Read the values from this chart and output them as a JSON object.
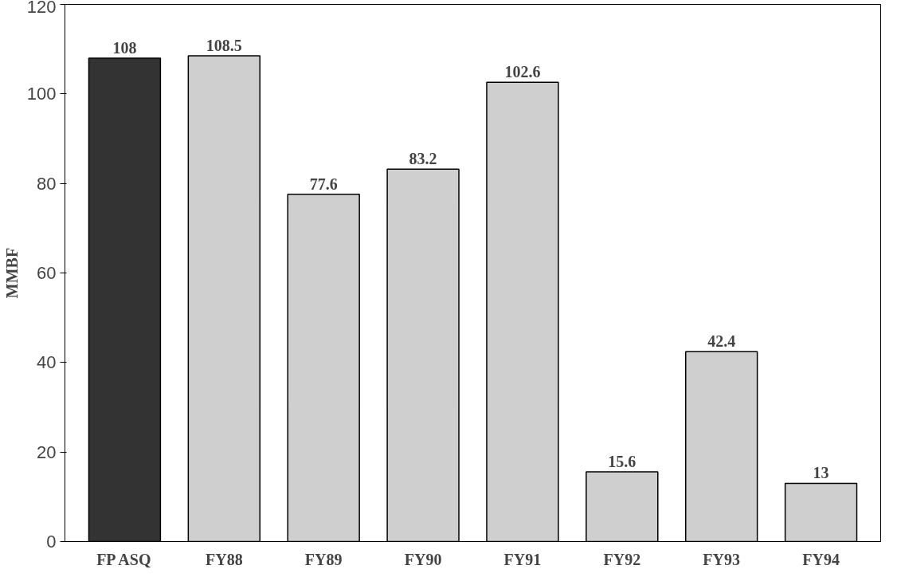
{
  "chart_data": {
    "type": "bar",
    "ylabel": "MMBF",
    "categories": [
      "FP ASQ",
      "FY88",
      "FY89",
      "FY90",
      "FY91",
      "FY92",
      "FY93",
      "FY94"
    ],
    "values": [
      108,
      108.5,
      77.6,
      83.2,
      102.6,
      15.6,
      42.4,
      13
    ],
    "colors": [
      "#333333",
      "#cfcfcf",
      "#cfcfcf",
      "#cfcfcf",
      "#cfcfcf",
      "#cfcfcf",
      "#cfcfcf",
      "#cfcfcf"
    ],
    "ylim": [
      0,
      120
    ],
    "yticks": [
      0,
      20,
      40,
      60,
      80,
      100,
      120
    ],
    "data_labels": true,
    "grid": false
  }
}
